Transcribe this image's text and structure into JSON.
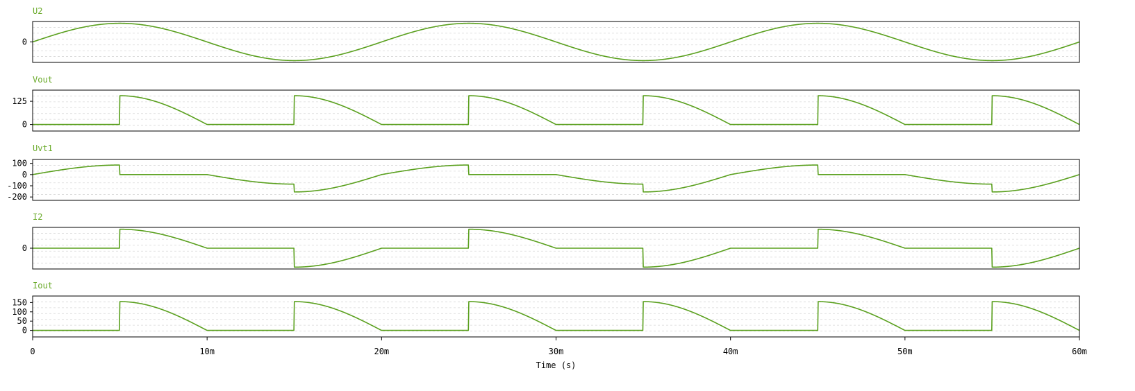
{
  "chart_data": {
    "type": "line",
    "time_axis": {
      "label": "Time (s)",
      "range": [
        0,
        0.06
      ],
      "ticks": [
        {
          "value": 0,
          "label": "0"
        },
        {
          "value": 0.01,
          "label": "10m"
        },
        {
          "value": 0.02,
          "label": "20m"
        },
        {
          "value": 0.03,
          "label": "30m"
        },
        {
          "value": 0.04,
          "label": "40m"
        },
        {
          "value": 0.05,
          "label": "50m"
        },
        {
          "value": 0.06,
          "label": "60m"
        }
      ]
    },
    "trace_color": "#5aa01e",
    "title_color": "#6aaa2a",
    "grid": true,
    "panels": [
      {
        "title": "U2",
        "ylim": [
          -170,
          170
        ],
        "yticks": [
          {
            "value": 0,
            "label": "0"
          }
        ],
        "shape": "sine",
        "amplitude": 155,
        "frequency_hz": 50,
        "firing_angle_deg": null
      },
      {
        "title": "Vout",
        "ylim": [
          -35,
          185
        ],
        "yticks": [
          {
            "value": 125,
            "label": "125"
          },
          {
            "value": 0,
            "label": "0"
          }
        ],
        "shape": "rectified_controlled",
        "amplitude": 155,
        "frequency_hz": 50,
        "firing_angle_deg": 90
      },
      {
        "title": "Uvt1",
        "ylim": [
          -230,
          135
        ],
        "yticks": [
          {
            "value": 100,
            "label": "100"
          },
          {
            "value": 0,
            "label": "0"
          },
          {
            "value": -100,
            "label": "-100"
          },
          {
            "value": -200,
            "label": "-200"
          }
        ],
        "shape": "thyristor_voltage",
        "amplitude": 155,
        "frequency_hz": 50,
        "firing_angle_deg": 90
      },
      {
        "title": "I2",
        "ylim": [
          -170,
          170
        ],
        "yticks": [
          {
            "value": 0,
            "label": "0"
          }
        ],
        "shape": "ac_controlled",
        "amplitude": 155,
        "frequency_hz": 50,
        "firing_angle_deg": 90
      },
      {
        "title": "Iout",
        "ylim": [
          -35,
          185
        ],
        "yticks": [
          {
            "value": 150,
            "label": "150"
          },
          {
            "value": 100,
            "label": "100"
          },
          {
            "value": 50,
            "label": "50"
          },
          {
            "value": 0,
            "label": "0"
          }
        ],
        "shape": "rectified_controlled",
        "amplitude": 155,
        "frequency_hz": 50,
        "firing_angle_deg": 90
      }
    ]
  }
}
